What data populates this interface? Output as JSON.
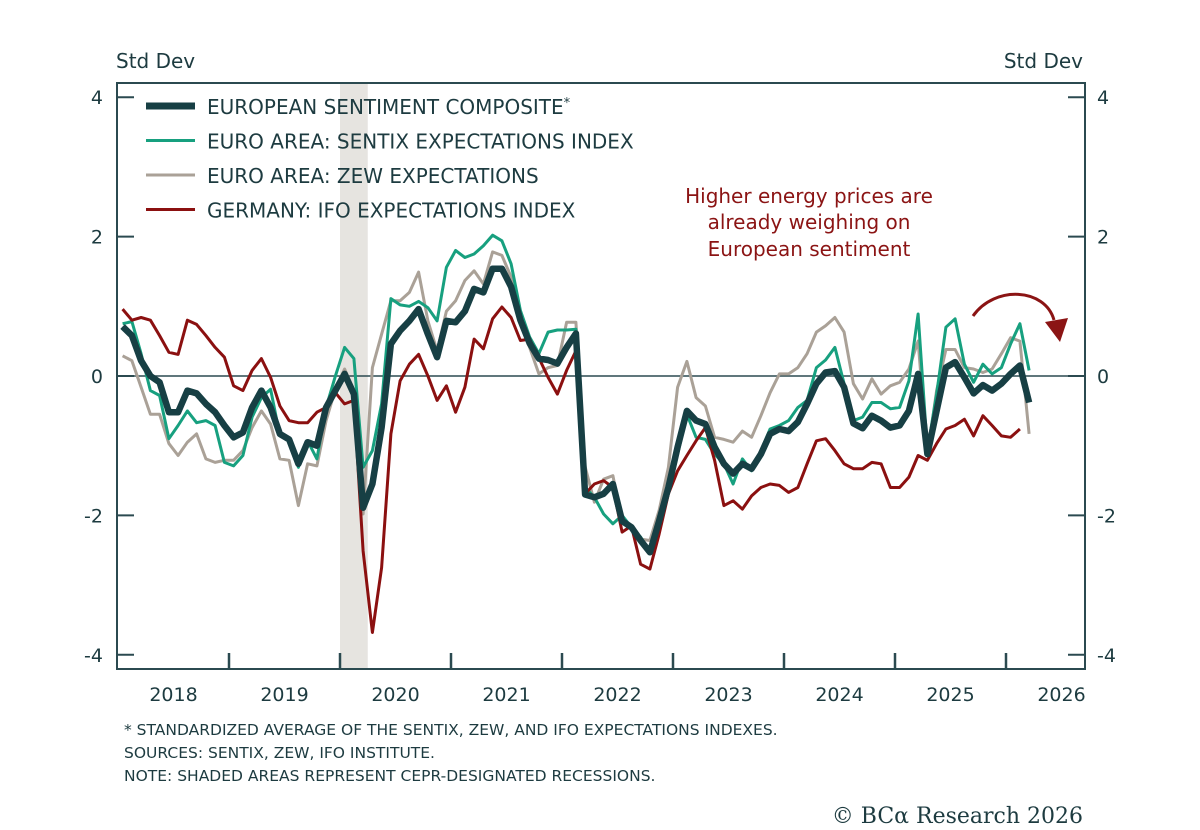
{
  "chart_data": {
    "type": "line",
    "ylabel_left": "Std Dev",
    "ylabel_right": "Std Dev",
    "ylim": [
      -4,
      4
    ],
    "yticks": [
      "4",
      "2",
      "0",
      "-2",
      "-4"
    ],
    "xlim": [
      "2018-01",
      "2026-09"
    ],
    "xtick_labels": [
      "2018",
      "2019",
      "2020",
      "2021",
      "2022",
      "2023",
      "2024",
      "2025",
      "2026"
    ],
    "grid": false,
    "zero_line": true,
    "legend_position": "top-left",
    "frequency": "monthly",
    "start": "2018-01",
    "recessions": [
      {
        "start": "2020-01",
        "end": "2020-04"
      }
    ],
    "recession_color": "#e6e4e0",
    "series": [
      {
        "name": "EUROPEAN SENTIMENT COMPOSITE",
        "marker": "*",
        "color": "#173f44",
        "width": "thick",
        "values": [
          0.71,
          0.58,
          0.22,
          0,
          -0.09,
          -0.52,
          -0.52,
          -0.21,
          -0.25,
          -0.4,
          -0.52,
          -0.71,
          -0.88,
          -0.81,
          -0.45,
          -0.21,
          -0.45,
          -0.83,
          -0.91,
          -1.26,
          -0.95,
          -1.0,
          -0.45,
          -0.21,
          0.03,
          -0.26,
          -1.89,
          -1.55,
          -0.74,
          0.46,
          0.65,
          0.79,
          0.96,
          0.6,
          0.27,
          0.79,
          0.77,
          0.93,
          1.25,
          1.2,
          1.54,
          1.54,
          1.28,
          0.8,
          0.47,
          0.25,
          0.23,
          0.18,
          0.41,
          0.61,
          -1.7,
          -1.74,
          -1.69,
          -1.55,
          -2.08,
          -2.17,
          -2.36,
          -2.53,
          -2.08,
          -1.6,
          -1.02,
          -0.5,
          -0.64,
          -0.69,
          -1.02,
          -1.26,
          -1.4,
          -1.26,
          -1.33,
          -1.12,
          -0.83,
          -0.76,
          -0.79,
          -0.66,
          -0.4,
          -0.11,
          0.05,
          0.07,
          -0.16,
          -0.68,
          -0.75,
          -0.57,
          -0.64,
          -0.74,
          -0.71,
          -0.5,
          0.03,
          -1.12,
          -0.5,
          0.12,
          0.2,
          -0.02,
          -0.25,
          -0.13,
          -0.21,
          -0.11,
          0.03,
          0.15,
          -0.38
        ]
      },
      {
        "name": "EURO AREA: SENTIX EXPECTATIONS INDEX",
        "color": "#17a07f",
        "width": "thin",
        "values": [
          0.75,
          0.78,
          0.32,
          -0.21,
          -0.28,
          -0.9,
          -0.71,
          -0.5,
          -0.67,
          -0.64,
          -0.71,
          -1.24,
          -1.29,
          -1.14,
          -0.59,
          -0.31,
          -0.19,
          -0.86,
          -0.93,
          -1.31,
          -0.93,
          -1.19,
          -0.45,
          0,
          0.41,
          0.25,
          -1.31,
          -1.07,
          -0.4,
          1.11,
          1.02,
          1.0,
          1.07,
          0.98,
          0.79,
          1.56,
          1.8,
          1.7,
          1.75,
          1.87,
          2.02,
          1.94,
          1.61,
          0.94,
          0.56,
          0.32,
          0.63,
          0.66,
          0.66,
          0.67,
          -1.6,
          -1.74,
          -1.98,
          -2.12,
          -2.0,
          -2.17,
          -2.31,
          -2.53,
          -2.17,
          -1.55,
          -1.12,
          -0.55,
          -0.88,
          -0.91,
          -1.12,
          -1.26,
          -1.55,
          -1.19,
          -1.36,
          -1.07,
          -0.76,
          -0.71,
          -0.64,
          -0.45,
          -0.35,
          0.12,
          0.23,
          0.41,
          -0.11,
          -0.64,
          -0.59,
          -0.38,
          -0.38,
          -0.47,
          -0.45,
          -0.07,
          0.89,
          -1.07,
          -0.26,
          0.7,
          0.82,
          0.17,
          -0.09,
          0.17,
          0.03,
          0.12,
          0.46,
          0.75,
          0.08
        ]
      },
      {
        "name": "EURO AREA: ZEW EXPECTATIONS",
        "color": "#aaa197",
        "width": "thin",
        "values": [
          0.29,
          0.22,
          -0.16,
          -0.55,
          -0.55,
          -0.97,
          -1.14,
          -0.95,
          -0.83,
          -1.19,
          -1.24,
          -1.21,
          -1.21,
          -1.07,
          -0.74,
          -0.5,
          -0.69,
          -1.19,
          -1.21,
          -1.86,
          -1.26,
          -1.29,
          -0.64,
          -0.19,
          0.1,
          -0.21,
          -1.98,
          0.12,
          0.6,
          1.08,
          1.08,
          1.2,
          1.49,
          0.79,
          0.36,
          0.93,
          1.08,
          1.37,
          1.51,
          1.32,
          1.78,
          1.73,
          1.42,
          0.75,
          0.41,
          0.03,
          0.12,
          0.15,
          0.77,
          0.77,
          -1.3,
          -1.81,
          -1.48,
          -1.43,
          -2.1,
          -2.17,
          -2.34,
          -2.36,
          -1.93,
          -1.31,
          -0.16,
          0.21,
          -0.31,
          -0.43,
          -0.88,
          -0.91,
          -0.95,
          -0.79,
          -0.88,
          -0.57,
          -0.24,
          0.03,
          0.03,
          0.12,
          0.32,
          0.63,
          0.72,
          0.84,
          0.63,
          -0.11,
          -0.33,
          -0.04,
          -0.26,
          -0.14,
          -0.09,
          0.1,
          0.5,
          -1.14,
          -0.21,
          0.38,
          0.38,
          0.12,
          0.1,
          0.05,
          0.1,
          0.32,
          0.55,
          0.5,
          -0.83
        ]
      },
      {
        "name": "GERMANY: IFO EXPECTATIONS INDEX",
        "color": "#8b1010",
        "width": "thin",
        "values": [
          0.96,
          0.8,
          0.84,
          0.8,
          0.58,
          0.34,
          0.31,
          0.8,
          0.74,
          0.58,
          0.41,
          0.27,
          -0.14,
          -0.21,
          0.08,
          0.25,
          -0.02,
          -0.43,
          -0.64,
          -0.67,
          -0.67,
          -0.52,
          -0.45,
          -0.24,
          -0.4,
          -0.35,
          -2.51,
          -3.68,
          -2.75,
          -0.83,
          -0.07,
          0.17,
          0.31,
          0,
          -0.35,
          -0.14,
          -0.52,
          -0.16,
          0.53,
          0.39,
          0.82,
          0.99,
          0.84,
          0.51,
          0.53,
          0.26,
          -0.02,
          -0.26,
          0.08,
          0.36,
          -1.69,
          -1.55,
          -1.5,
          -1.6,
          -2.24,
          -2.15,
          -2.7,
          -2.77,
          -2.27,
          -1.69,
          -1.36,
          -1.14,
          -0.93,
          -0.74,
          -1.21,
          -1.86,
          -1.79,
          -1.91,
          -1.72,
          -1.6,
          -1.55,
          -1.57,
          -1.67,
          -1.6,
          -1.26,
          -0.93,
          -0.9,
          -1.07,
          -1.26,
          -1.33,
          -1.33,
          -1.24,
          -1.26,
          -1.6,
          -1.6,
          -1.45,
          -1.14,
          -1.21,
          -0.97,
          -0.76,
          -0.71,
          -0.62,
          -0.86,
          -0.57,
          -0.71,
          -0.86,
          -0.88,
          -0.76
        ]
      }
    ],
    "annotation": {
      "lines": [
        "Higher energy prices are",
        "already weighing on",
        "European sentiment"
      ],
      "color": "#8b1414",
      "arrow": "curved-down-right"
    },
    "footnotes": [
      "* STANDARDIZED AVERAGE OF THE SENTIX, ZEW, AND IFO EXPECTATIONS INDEXES.",
      "SOURCES: SENTIX, ZEW, IFO INSTITUTE.",
      "NOTE: SHADED AREAS REPRESENT CEPR-DESIGNATED RECESSIONS."
    ],
    "copyright": "© BCα Research 2026"
  }
}
